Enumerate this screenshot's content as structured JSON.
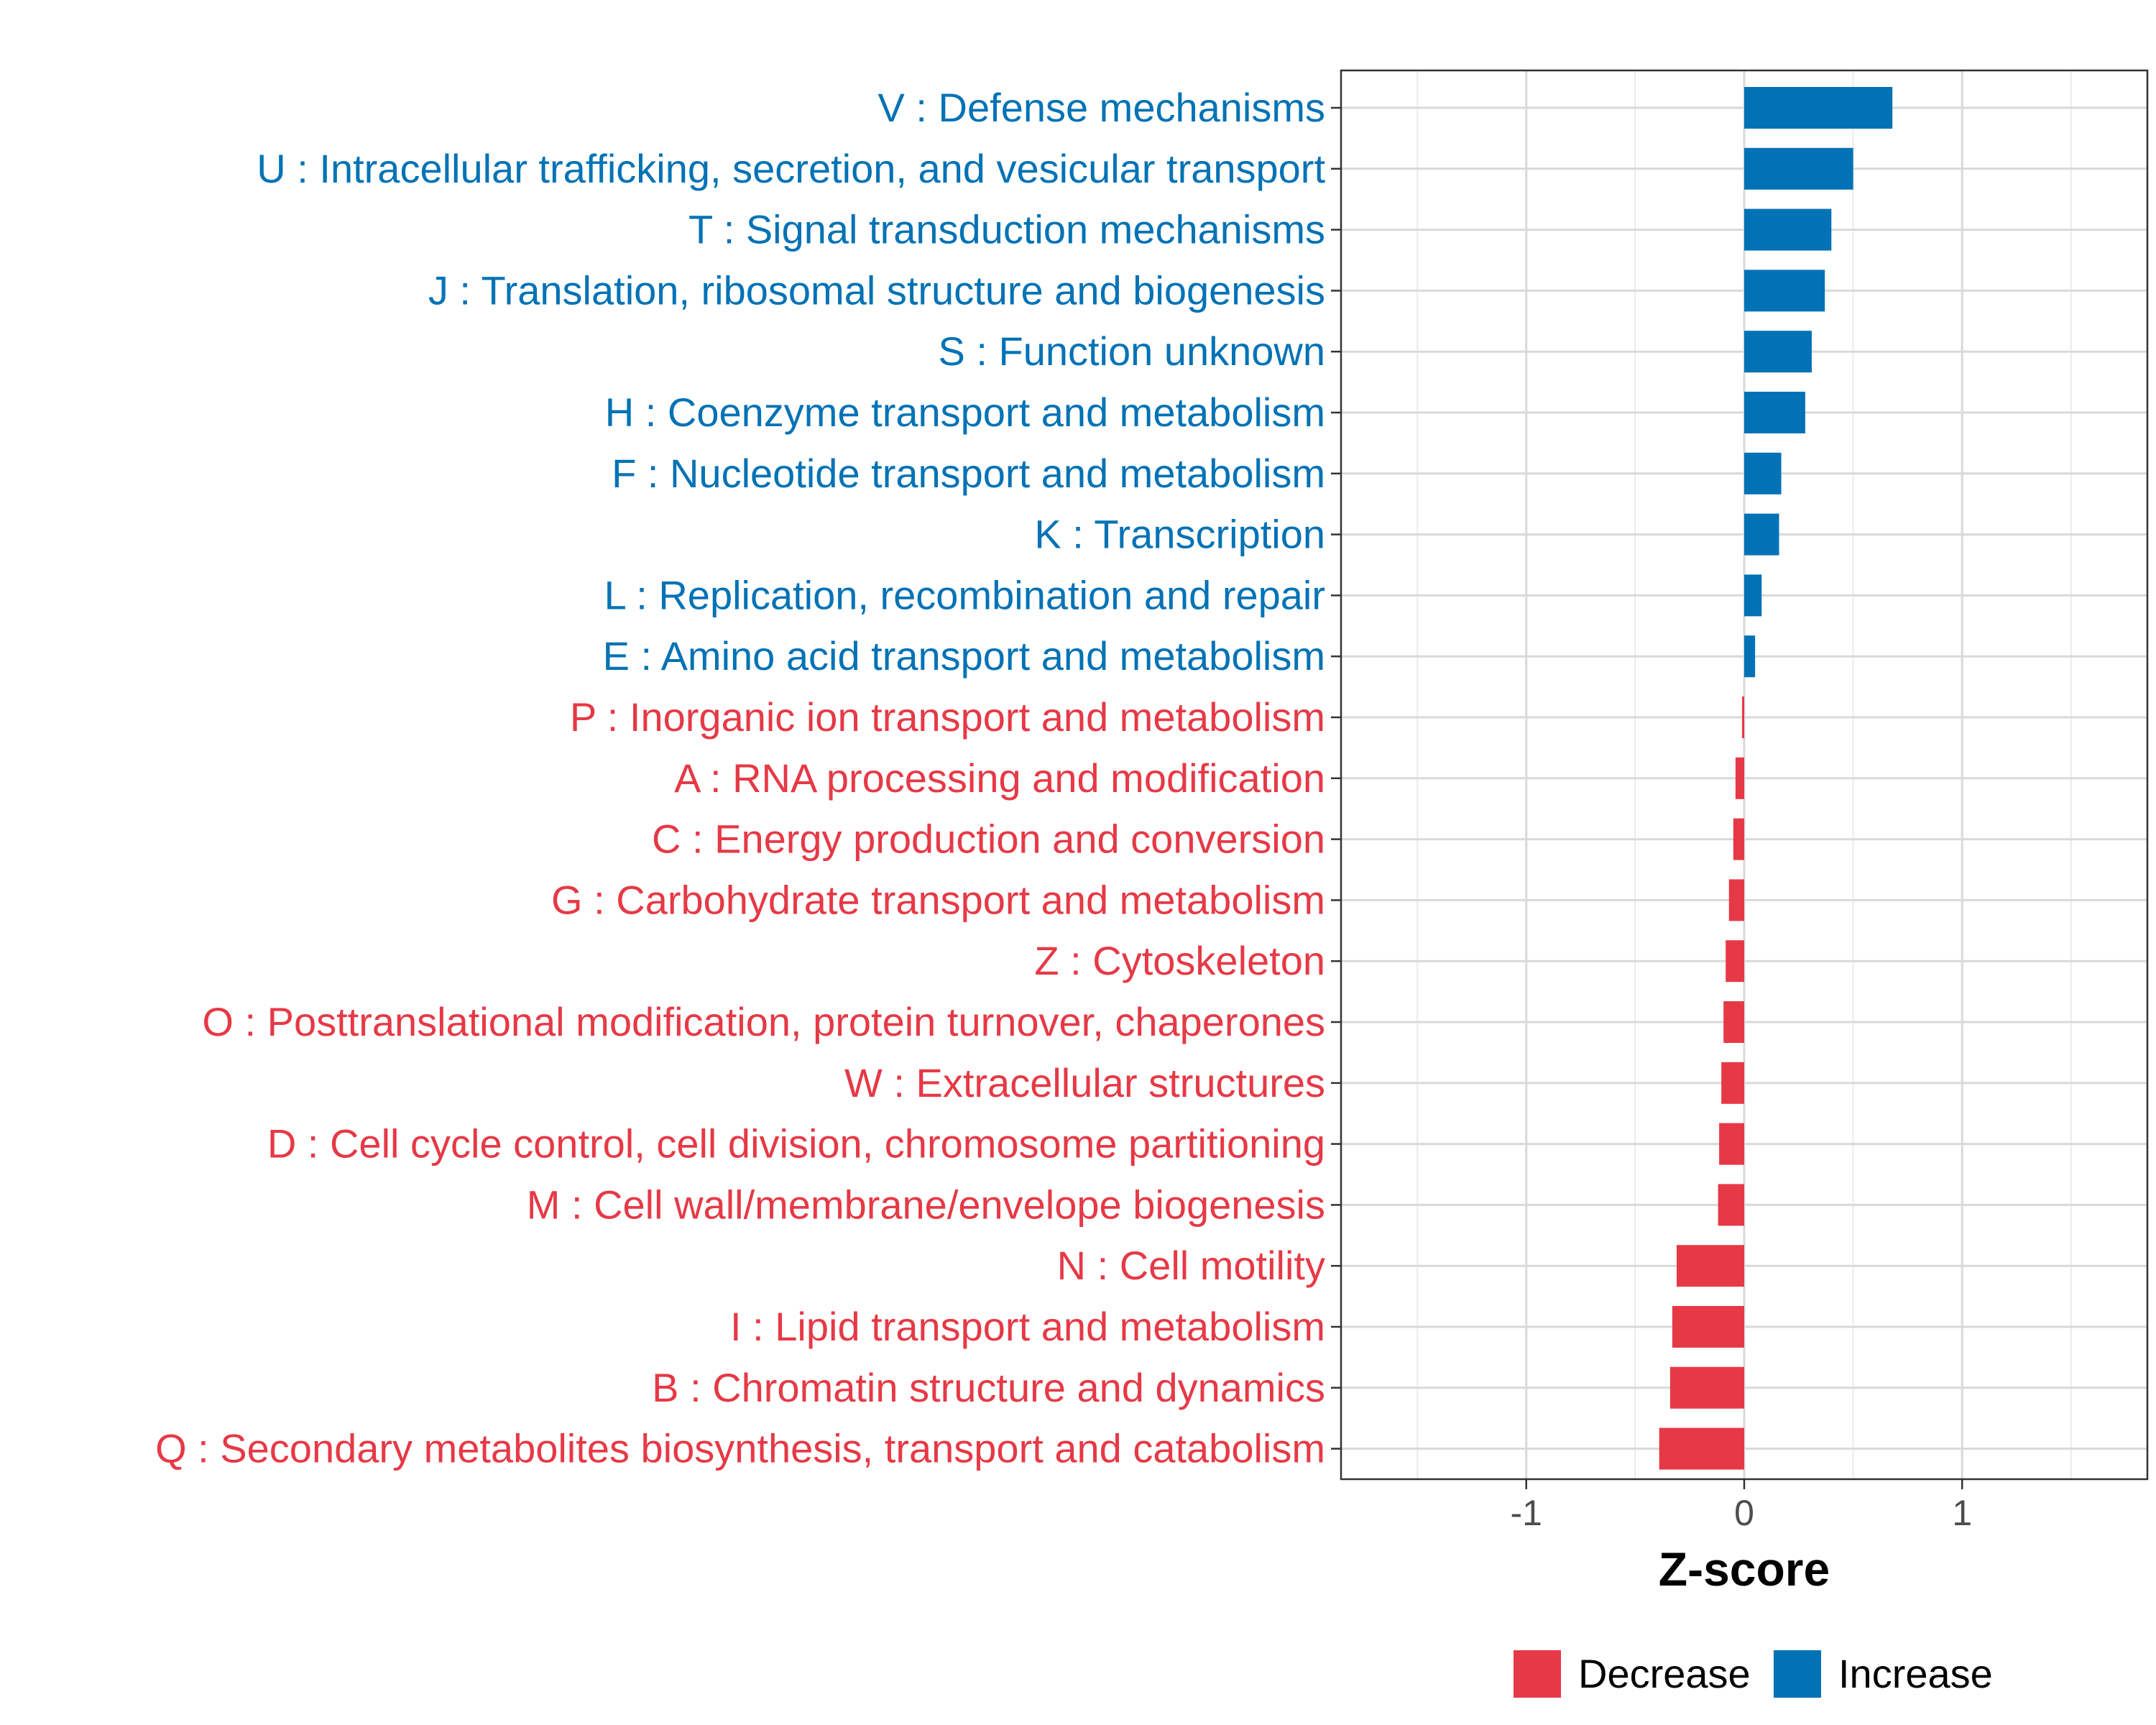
{
  "colors": {
    "increase": "#0072B5",
    "decrease": "#E63946"
  },
  "chart_data": {
    "type": "bar",
    "orientation": "horizontal",
    "xlabel": "Z-score",
    "xlim": [
      -1.85,
      1.85
    ],
    "xticks": [
      -1,
      0,
      1
    ],
    "xtick_labels": [
      "-1",
      "0",
      "1"
    ],
    "grid": true,
    "legend_position": "bottom",
    "legend": [
      {
        "name": "Decrease",
        "color": "#E63946"
      },
      {
        "name": "Increase",
        "color": "#0072B5"
      }
    ],
    "categories": [
      "V : Defense mechanisms",
      "U : Intracellular trafficking, secretion, and vesicular transport",
      "T : Signal transduction mechanisms",
      "J : Translation, ribosomal structure and biogenesis",
      "S : Function unknown",
      "H : Coenzyme transport and metabolism",
      "F : Nucleotide transport and metabolism",
      "K : Transcription",
      "L : Replication, recombination and repair",
      "E : Amino acid transport and metabolism",
      "P : Inorganic ion transport and metabolism",
      "A : RNA processing and modification",
      "C : Energy production and conversion",
      "G : Carbohydrate transport and metabolism",
      "Z : Cytoskeleton",
      "O : Posttranslational modification, protein turnover, chaperones",
      "W : Extracellular structures",
      "D : Cell cycle control, cell division, chromosome partitioning",
      "M : Cell wall/membrane/envelope biogenesis",
      "N : Cell motility",
      "I : Lipid transport and metabolism",
      "B : Chromatin structure and dynamics",
      "Q : Secondary metabolites biosynthesis, transport and catabolism"
    ],
    "values": [
      0.68,
      0.5,
      0.4,
      0.37,
      0.31,
      0.28,
      0.17,
      0.16,
      0.08,
      0.05,
      -0.01,
      -0.04,
      -0.05,
      -0.07,
      -0.085,
      -0.095,
      -0.105,
      -0.115,
      -0.12,
      -0.31,
      -0.33,
      -0.34,
      -0.39
    ],
    "groups": [
      "Increase",
      "Increase",
      "Increase",
      "Increase",
      "Increase",
      "Increase",
      "Increase",
      "Increase",
      "Increase",
      "Increase",
      "Decrease",
      "Decrease",
      "Decrease",
      "Decrease",
      "Decrease",
      "Decrease",
      "Decrease",
      "Decrease",
      "Decrease",
      "Decrease",
      "Decrease",
      "Decrease",
      "Decrease"
    ]
  }
}
